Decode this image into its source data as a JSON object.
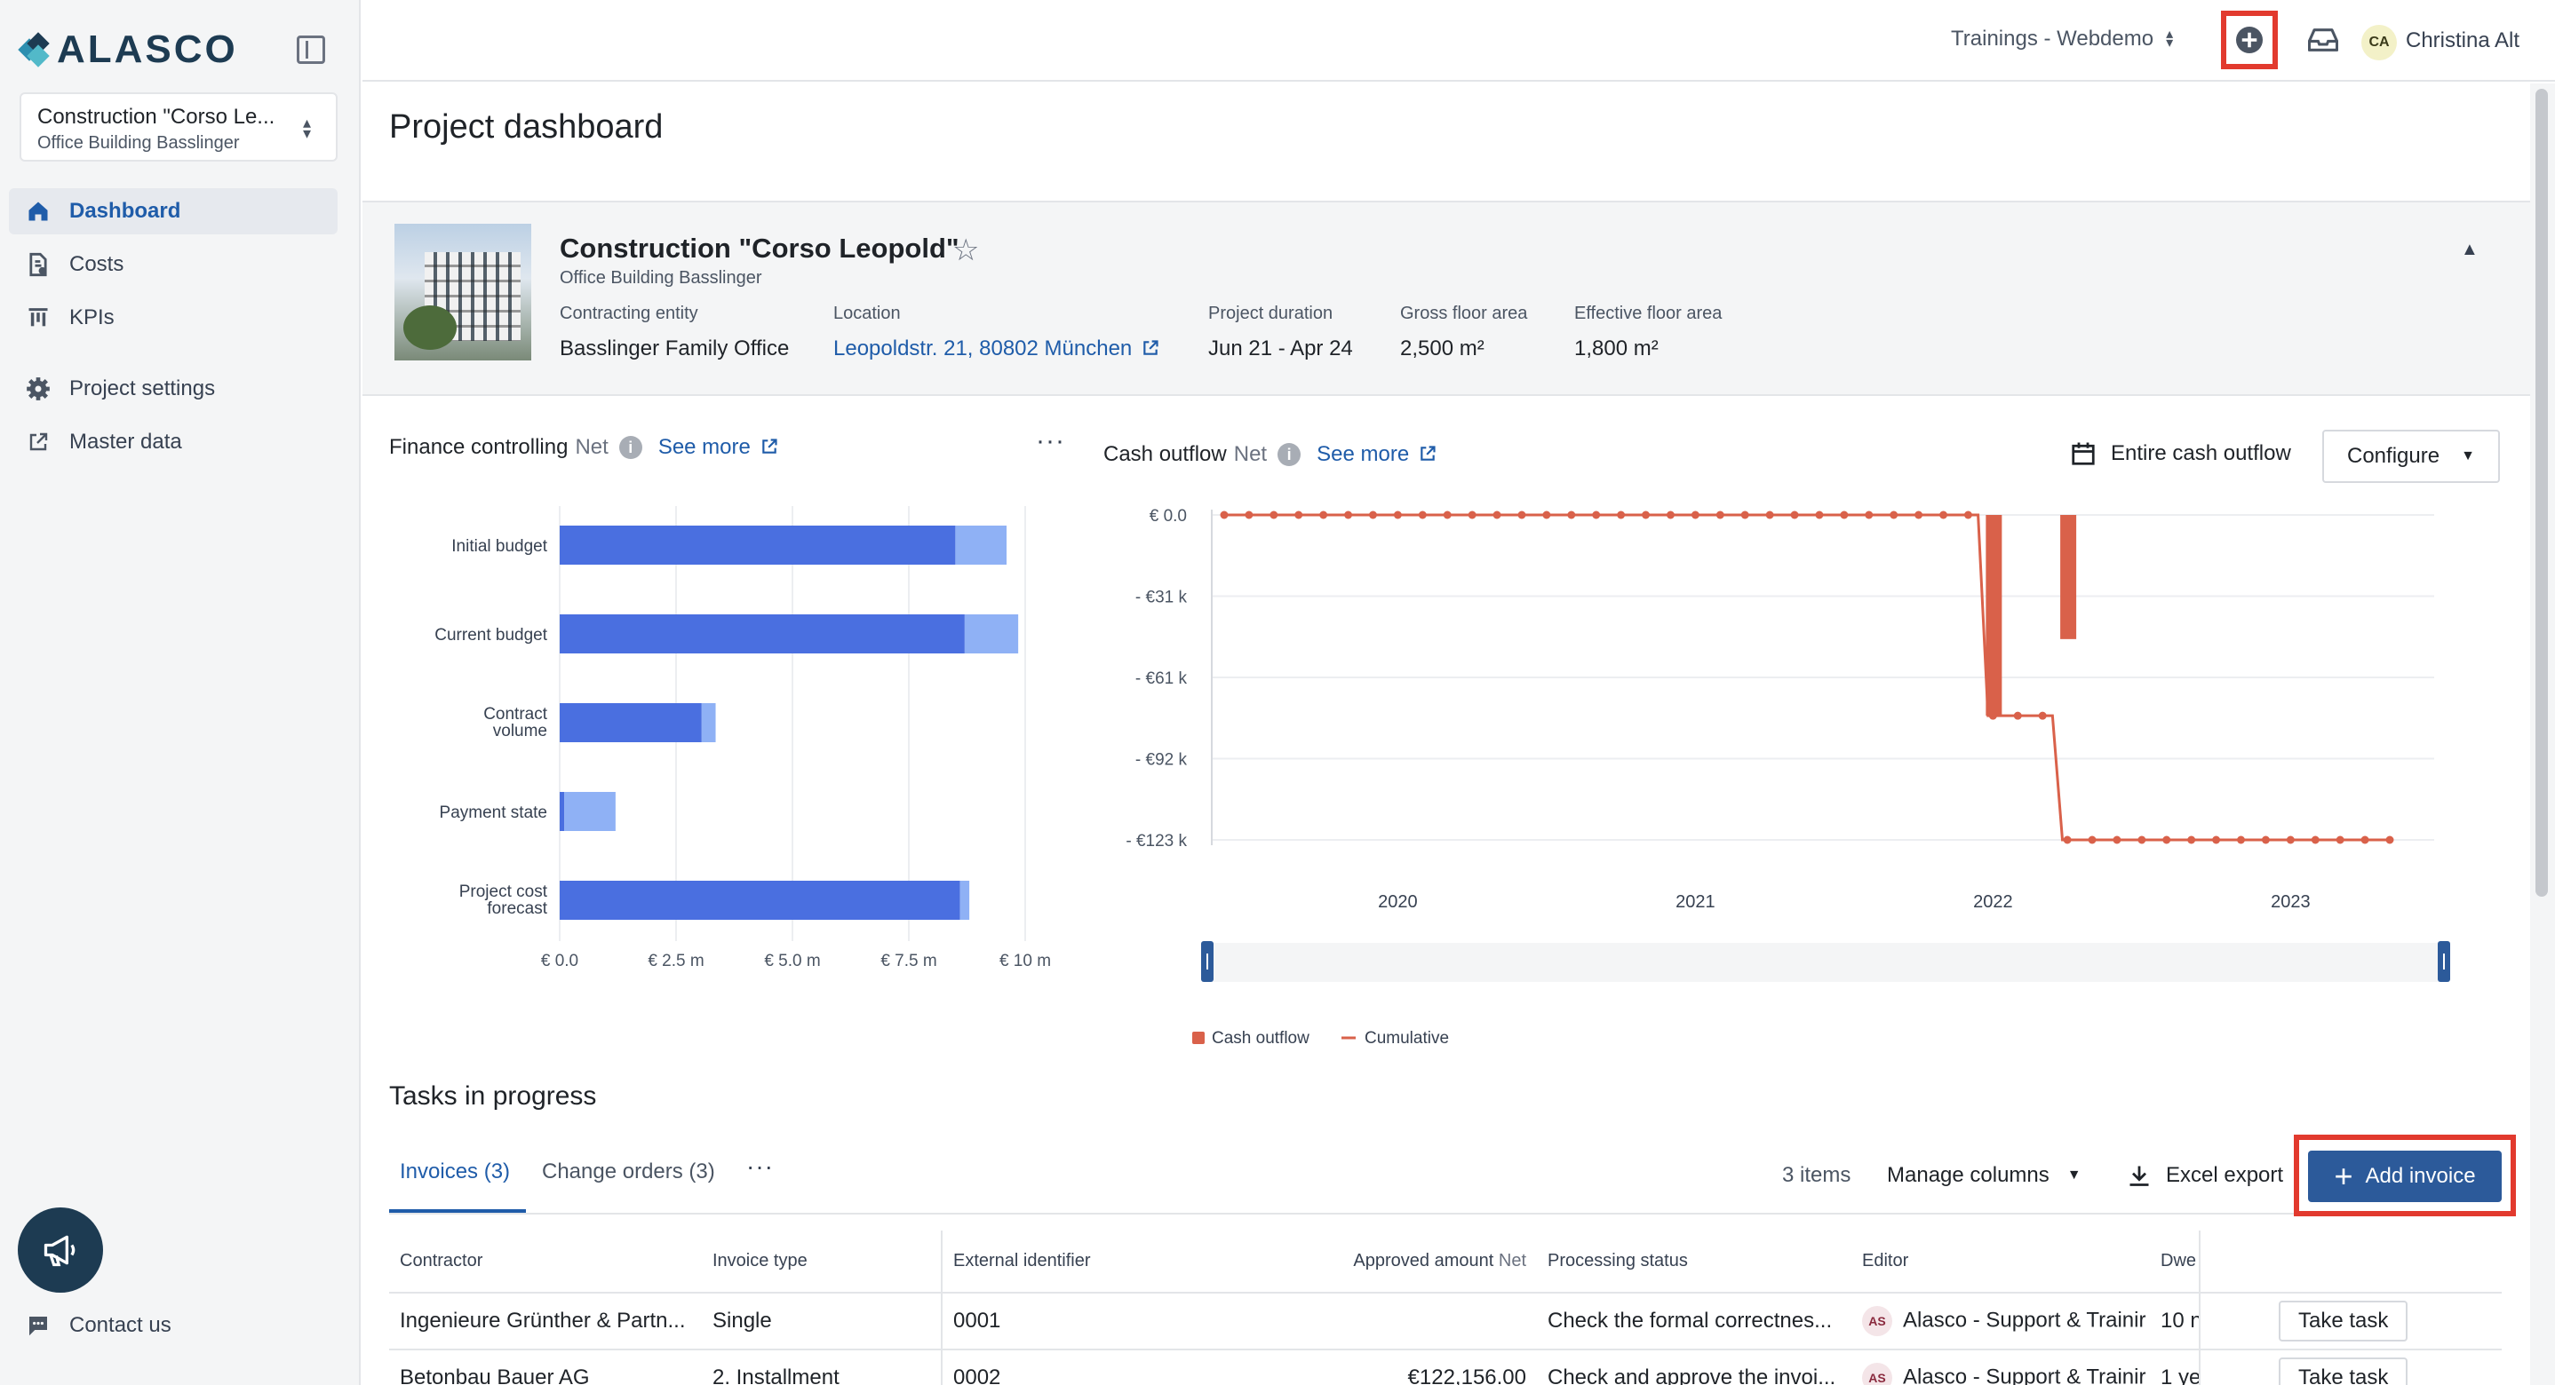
{
  "brand": {
    "name": "ALASCO"
  },
  "sidebar": {
    "project_name": "Construction \"Corso Le...",
    "project_sub": "Office Building Basslinger",
    "items": [
      {
        "label": "Dashboard",
        "icon": "home-icon"
      },
      {
        "label": "Costs",
        "icon": "costs-icon"
      },
      {
        "label": "KPIs",
        "icon": "kpi-icon"
      },
      {
        "label": "Project settings",
        "icon": "gear-icon"
      },
      {
        "label": "Master data",
        "icon": "external-link-icon"
      }
    ],
    "contact": "Contact us"
  },
  "topbar": {
    "org": "Trainings - Webdemo",
    "avatar_initials": "CA",
    "user": "Christina Alt"
  },
  "page": {
    "title": "Project dashboard"
  },
  "project": {
    "name": "Construction \"Corso Leopold\"",
    "subtitle": "Office Building Basslinger",
    "meta": [
      {
        "label": "Contracting entity",
        "value": "Basslinger Family Office"
      },
      {
        "label": "Location",
        "value": "Leopoldstr. 21, 80802 München"
      },
      {
        "label": "Project duration",
        "value": "Jun 21 - Apr 24"
      },
      {
        "label": "Gross floor area",
        "value": "2,500 m²"
      },
      {
        "label": "Effective floor area",
        "value": "1,800 m²"
      }
    ]
  },
  "finance": {
    "title": "Finance controlling",
    "net": "Net",
    "see_more": "See more"
  },
  "cash": {
    "title": "Cash outflow",
    "net": "Net",
    "see_more": "See more",
    "range_label": "Entire cash outflow",
    "configure": "Configure"
  },
  "chart_data": [
    {
      "type": "bar",
      "title": "Finance controlling",
      "categories": [
        "Initial budget",
        "Current budget",
        "Contract volume",
        "Payment state",
        "Project cost forecast"
      ],
      "series": [
        {
          "values": [
            8.5,
            8.7,
            3.05,
            0.1,
            8.6
          ],
          "color": "#4a6fe0"
        },
        {
          "values": [
            1.1,
            1.15,
            0.3,
            1.1,
            0.2
          ],
          "color": "#8fb1f5"
        }
      ],
      "x_ticks": [
        "€ 0.0",
        "€ 2.5 m",
        "€ 5.0 m",
        "€ 7.5 m",
        "€ 10 m"
      ],
      "xlim": [
        0,
        10
      ],
      "unit": "€ m"
    },
    {
      "type": "line",
      "title": "Cash outflow",
      "y_ticks": [
        "€ 0.0",
        "- €31 k",
        "- €61 k",
        "- €92 k",
        "- €123 k"
      ],
      "ylim": [
        -123,
        0
      ],
      "x_ticks": [
        "2020",
        "2021",
        "2022",
        "2023"
      ],
      "series": [
        {
          "name": "Cash outflow",
          "type": "bar",
          "color": "#d9614a",
          "points": [
            {
              "x": "2022-01",
              "y": -76
            },
            {
              "x": "2022-04",
              "y": -47
            }
          ]
        },
        {
          "name": "Cumulative",
          "type": "line",
          "color": "#d9614a",
          "points": [
            {
              "x": "2019-06",
              "y": 0
            },
            {
              "x": "2019-07",
              "y": 0
            },
            {
              "x": "2019-08",
              "y": 0
            },
            {
              "x": "2019-09",
              "y": 0
            },
            {
              "x": "2019-10",
              "y": 0
            },
            {
              "x": "2019-11",
              "y": 0
            },
            {
              "x": "2019-12",
              "y": 0
            },
            {
              "x": "2020-01",
              "y": 0
            },
            {
              "x": "2020-02",
              "y": 0
            },
            {
              "x": "2020-03",
              "y": 0
            },
            {
              "x": "2020-04",
              "y": 0
            },
            {
              "x": "2020-05",
              "y": 0
            },
            {
              "x": "2020-06",
              "y": 0
            },
            {
              "x": "2020-07",
              "y": 0
            },
            {
              "x": "2020-08",
              "y": 0
            },
            {
              "x": "2020-09",
              "y": 0
            },
            {
              "x": "2020-10",
              "y": 0
            },
            {
              "x": "2020-11",
              "y": 0
            },
            {
              "x": "2020-12",
              "y": 0
            },
            {
              "x": "2021-01",
              "y": 0
            },
            {
              "x": "2021-02",
              "y": 0
            },
            {
              "x": "2021-03",
              "y": 0
            },
            {
              "x": "2021-04",
              "y": 0
            },
            {
              "x": "2021-05",
              "y": 0
            },
            {
              "x": "2021-06",
              "y": 0
            },
            {
              "x": "2021-07",
              "y": 0
            },
            {
              "x": "2021-08",
              "y": 0
            },
            {
              "x": "2021-09",
              "y": 0
            },
            {
              "x": "2021-10",
              "y": 0
            },
            {
              "x": "2021-11",
              "y": 0
            },
            {
              "x": "2021-12",
              "y": 0
            },
            {
              "x": "2022-01",
              "y": -76
            },
            {
              "x": "2022-02",
              "y": -76
            },
            {
              "x": "2022-03",
              "y": -76
            },
            {
              "x": "2022-04",
              "y": -123
            },
            {
              "x": "2022-05",
              "y": -123
            },
            {
              "x": "2022-06",
              "y": -123
            },
            {
              "x": "2022-07",
              "y": -123
            },
            {
              "x": "2022-08",
              "y": -123
            },
            {
              "x": "2022-09",
              "y": -123
            },
            {
              "x": "2022-10",
              "y": -123
            },
            {
              "x": "2022-11",
              "y": -123
            },
            {
              "x": "2022-12",
              "y": -123
            },
            {
              "x": "2023-01",
              "y": -123
            },
            {
              "x": "2023-02",
              "y": -123
            },
            {
              "x": "2023-03",
              "y": -123
            },
            {
              "x": "2023-04",
              "y": -123
            },
            {
              "x": "2023-05",
              "y": -123
            }
          ]
        }
      ],
      "legend": [
        "Cash outflow",
        "Cumulative"
      ],
      "legend_position": "bottom-left",
      "grid": true
    }
  ],
  "tasks": {
    "title": "Tasks in progress",
    "tabs": [
      "Invoices (3)",
      "Change orders (3)"
    ],
    "items_count": "3 items",
    "manage_columns": "Manage columns",
    "excel_export": "Excel export",
    "add_invoice": "Add invoice",
    "columns": [
      "Contractor",
      "Invoice type",
      "External identifier",
      "Approved amount",
      "Net",
      "Processing status",
      "Editor",
      "Dwe"
    ],
    "rows": [
      {
        "contractor": "Ingenieure Grünther & Partn...",
        "type": "Single",
        "ext_id": "0001",
        "amount": "",
        "status": "Check the formal correctnes...",
        "editor_initials": "AS",
        "editor": "Alasco - Support & Trainir",
        "dwell": "10 n",
        "action": "Take task"
      },
      {
        "contractor": "Betonbau Bauer AG",
        "type": "2. Installment",
        "ext_id": "0002",
        "amount": "€122,156.00",
        "status": "Check and approve the invoi...",
        "editor_initials": "AS",
        "editor": "Alasco - Support & Trainir",
        "dwell": "1 ye",
        "action": "Take task"
      }
    ]
  }
}
